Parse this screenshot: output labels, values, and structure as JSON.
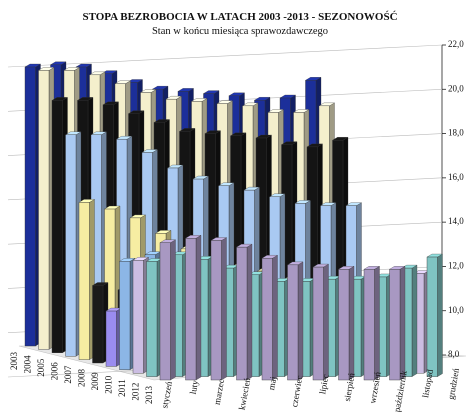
{
  "chart_data": {
    "type": "bar3d",
    "title": "STOPA BEZROBOCIA W LATACH 2003 -2013 - SEZONOWOŚĆ",
    "subtitle": "Stan w końcu miesiąca sprawozdawczego",
    "categories": [
      "styczeń",
      "luty",
      "marzec",
      "kwiecień",
      "maj",
      "czerwiec",
      "lipiec",
      "sierpień",
      "wrzesień",
      "październik",
      "listopad",
      "grudzień"
    ],
    "series": [
      {
        "name": "2003",
        "color": "#1c2f9a",
        "values": [
          20.6,
          20.7,
          20.6,
          20.3,
          19.9,
          19.6,
          19.5,
          19.4,
          19.3,
          19.1,
          19.2,
          20.0
        ]
      },
      {
        "name": "2004",
        "color": "#f4efcc",
        "values": [
          20.6,
          20.6,
          20.4,
          20.0,
          19.6,
          19.3,
          19.2,
          19.1,
          19.0,
          18.7,
          18.7,
          19.0
        ]
      },
      {
        "name": "2005",
        "color": "#141414",
        "values": [
          19.4,
          19.4,
          19.2,
          18.8,
          18.4,
          18.0,
          17.9,
          17.8,
          17.7,
          17.4,
          17.3,
          17.6
        ]
      },
      {
        "name": "2006",
        "color": "#a9c9f2",
        "values": [
          18.0,
          18.0,
          17.8,
          17.2,
          16.5,
          16.0,
          15.7,
          15.5,
          15.2,
          14.9,
          14.8,
          14.8
        ]
      },
      {
        "name": "2007",
        "color": "#f6eda2",
        "values": [
          15.1,
          14.8,
          14.4,
          13.7,
          13.0,
          12.4,
          12.2,
          12.0,
          11.6,
          11.3,
          11.3,
          11.2
        ]
      },
      {
        "name": "2008",
        "color": "#1a1a1a",
        "values": [
          11.5,
          11.3,
          10.9,
          10.3,
          9.8,
          9.5,
          9.4,
          9.3,
          9.1,
          8.9,
          9.1,
          9.5
        ]
      },
      {
        "name": "2009",
        "color": "#9a8cf0",
        "values": [
          10.5,
          10.9,
          11.2,
          11.0,
          10.8,
          10.7,
          10.8,
          10.8,
          10.9,
          11.1,
          11.4,
          12.1
        ]
      },
      {
        "name": "2010",
        "color": "#8cb6e6",
        "values": [
          12.9,
          13.2,
          13.0,
          12.3,
          11.9,
          11.6,
          11.4,
          11.4,
          11.5,
          11.5,
          11.7,
          12.4
        ]
      },
      {
        "name": "2011",
        "color": "#cbbde2",
        "values": [
          13.1,
          13.2,
          13.1,
          12.6,
          12.2,
          11.9,
          11.8,
          11.8,
          11.8,
          11.8,
          12.1,
          12.5
        ]
      },
      {
        "name": "2012",
        "color": "#7fc4c2",
        "values": [
          13.2,
          13.5,
          13.3,
          12.9,
          12.6,
          12.3,
          12.3,
          12.4,
          12.4,
          12.5,
          12.9,
          13.4
        ]
      },
      {
        "name": "2013",
        "color": "#a898c2",
        "values": [
          14.2,
          14.4,
          14.3,
          14.0,
          13.5,
          13.2,
          13.1,
          13.0,
          13.0,
          13.0,
          null,
          null
        ]
      }
    ],
    "ylim": [
      8,
      22
    ],
    "yticks": [
      {
        "value": 8,
        "label": "8,0"
      },
      {
        "value": 10,
        "label": "10,0"
      },
      {
        "value": 12,
        "label": "12,0"
      },
      {
        "value": 14,
        "label": "14,0"
      },
      {
        "value": 16,
        "label": "16,0"
      },
      {
        "value": 18,
        "label": "18,0"
      },
      {
        "value": 20,
        "label": "20,0"
      },
      {
        "value": 22,
        "label": "22,0"
      }
    ],
    "grid": true
  }
}
